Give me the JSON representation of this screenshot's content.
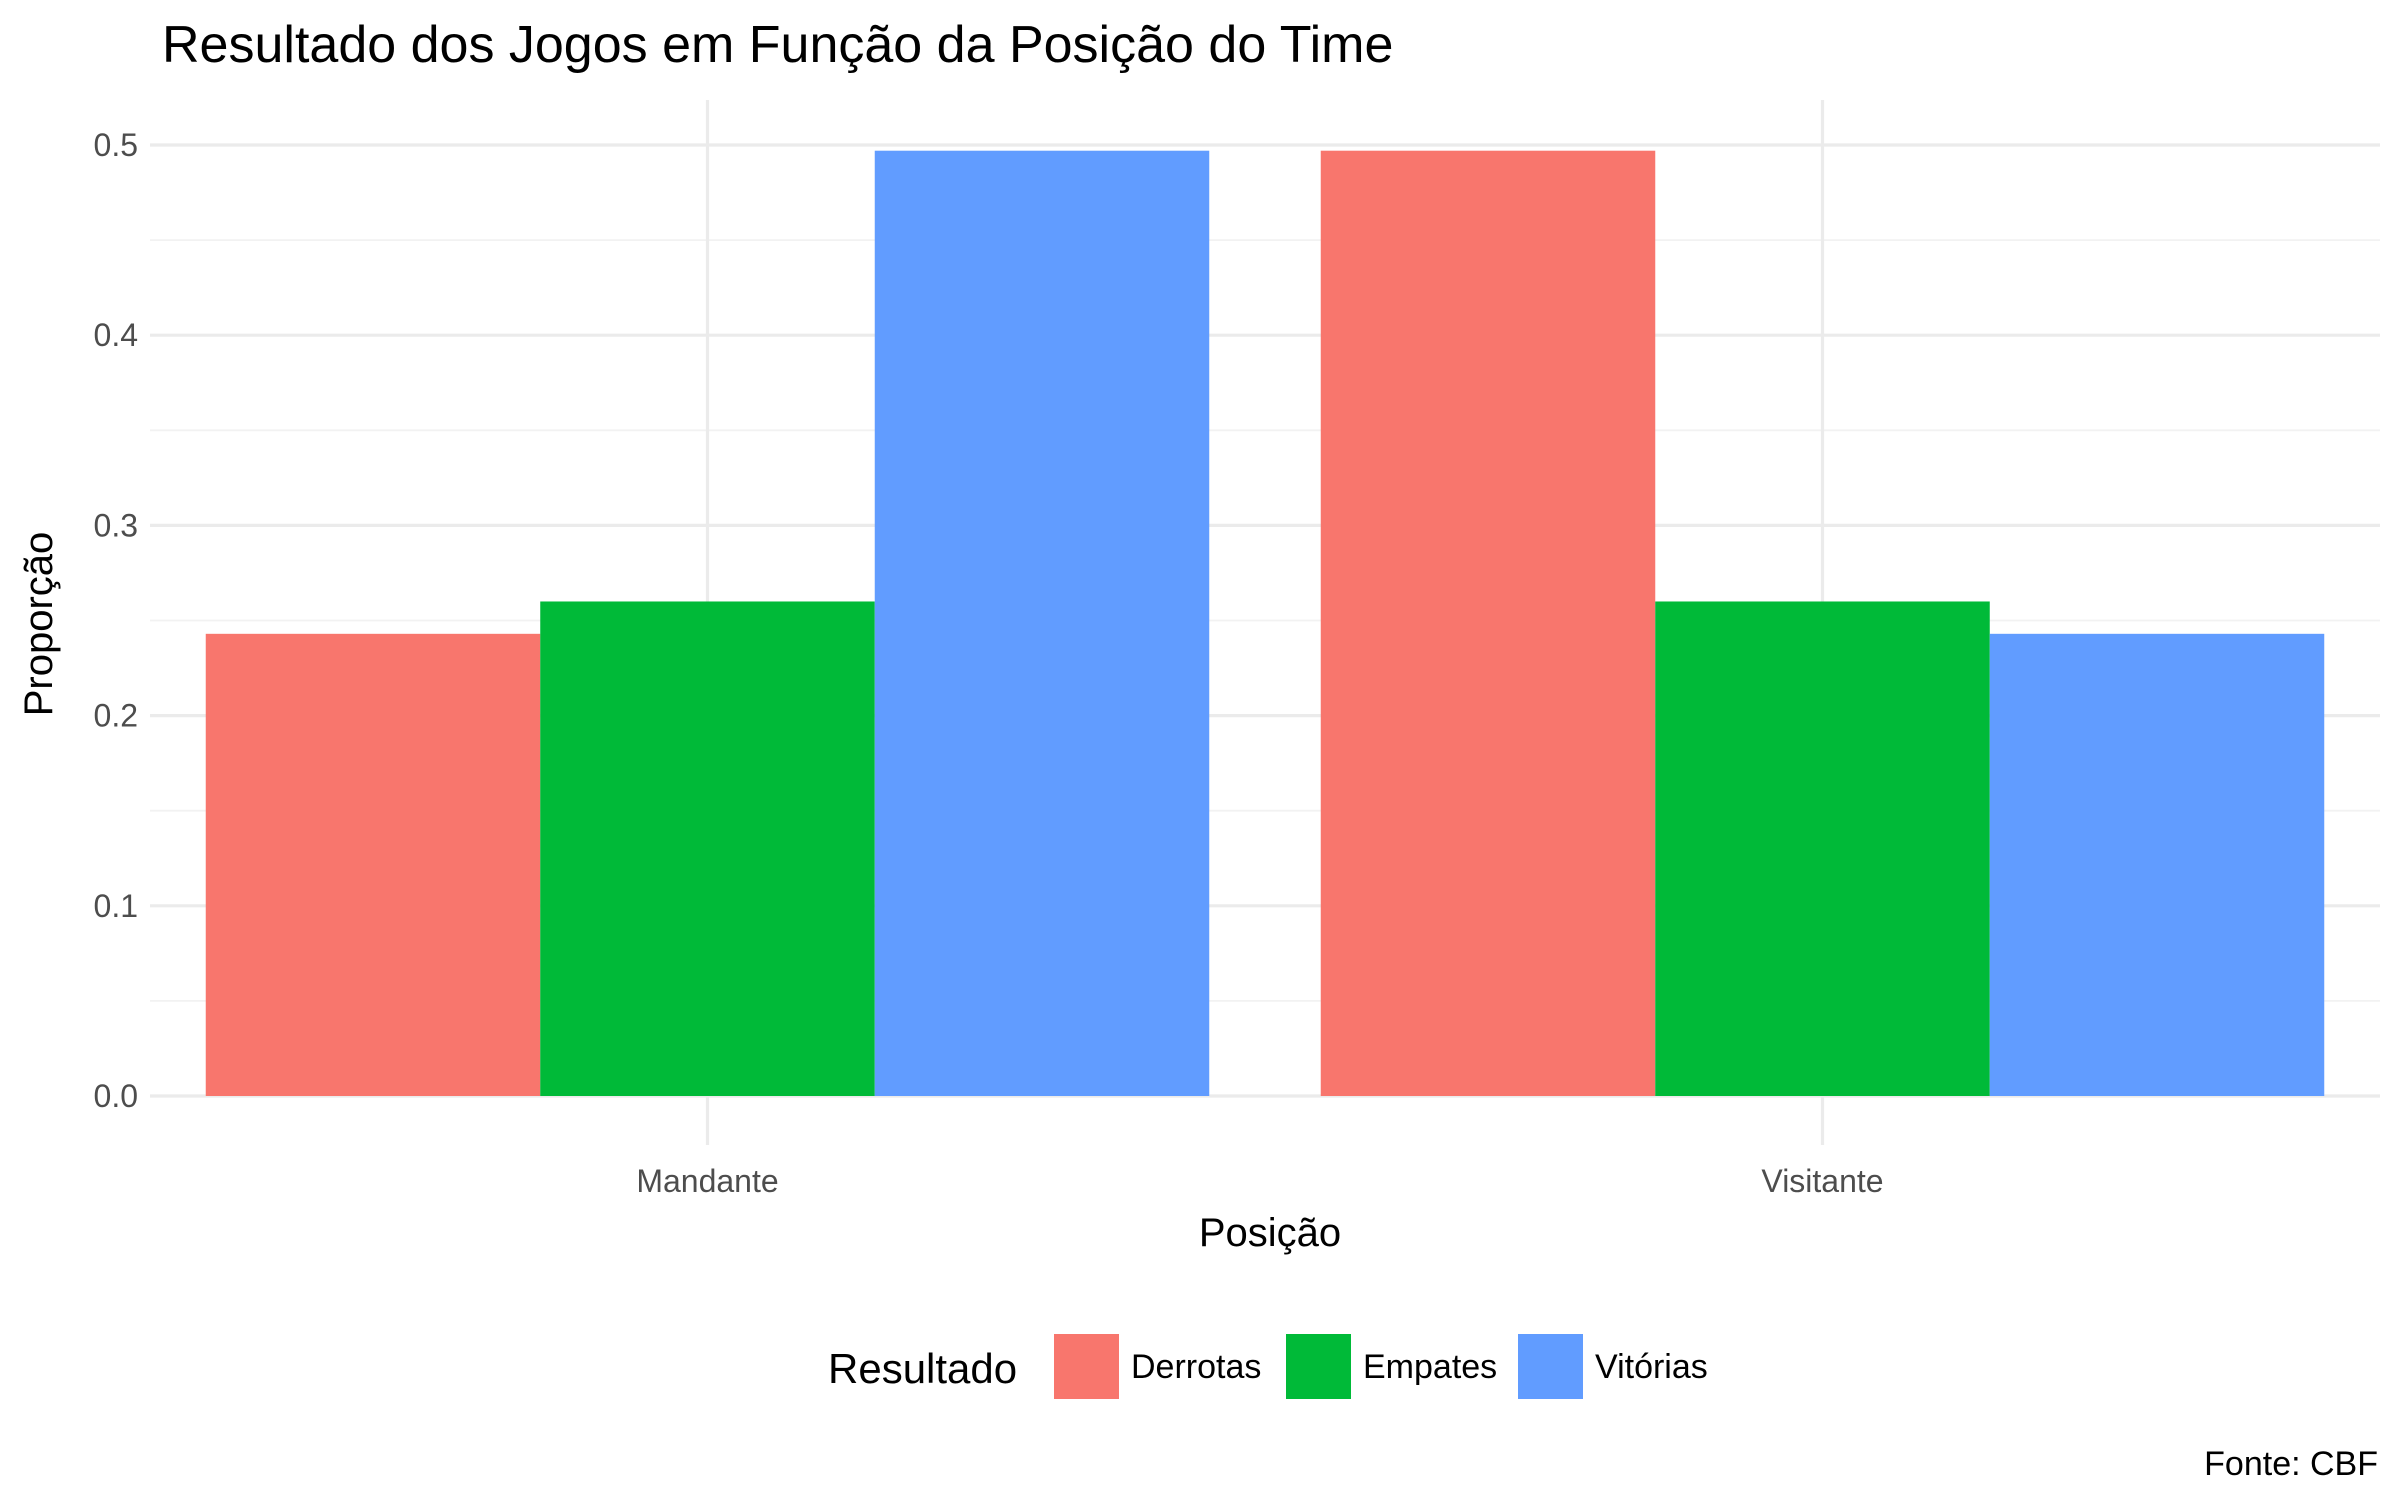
{
  "chart_data": {
    "type": "bar",
    "title": "Resultado dos Jogos em Função da Posição do Time",
    "xlabel": "Posição",
    "ylabel": "Proporção",
    "caption": "Fonte: CBF",
    "categories": [
      "Mandante",
      "Visitante"
    ],
    "series": [
      {
        "name": "Derrotas",
        "color": "#F8766D",
        "values": [
          0.243,
          0.497
        ]
      },
      {
        "name": "Empates",
        "color": "#00BA38",
        "values": [
          0.26,
          0.26
        ]
      },
      {
        "name": "Vitórias",
        "color": "#619CFF",
        "values": [
          0.497,
          0.243
        ]
      }
    ],
    "ylim": [
      0,
      0.5
    ],
    "yticks": [
      "0.0",
      "0.1",
      "0.2",
      "0.3",
      "0.4",
      "0.5"
    ],
    "legend": {
      "title": "Resultado",
      "position": "bottom"
    },
    "grid": true
  }
}
